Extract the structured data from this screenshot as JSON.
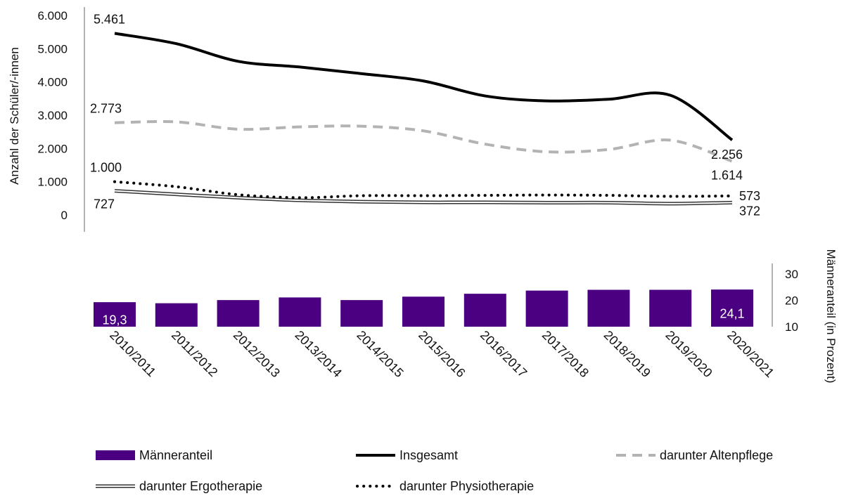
{
  "chart_data": [
    {
      "type": "line",
      "ylabel": "Anzahl der Schüler/-innen",
      "ylim": [
        0,
        6000
      ],
      "yticks": [
        "0",
        "1.000",
        "2.000",
        "3.000",
        "4.000",
        "5.000",
        "6.000"
      ],
      "ytick_values": [
        0,
        1000,
        2000,
        3000,
        4000,
        5000,
        6000
      ],
      "categories": [
        "2010/2011",
        "2011/2012",
        "2012/2013",
        "2013/2014",
        "2014/2015",
        "2015/2016",
        "2016/2017",
        "2017/2018",
        "2018/2019",
        "2019/2020",
        "2020/2021"
      ],
      "series": [
        {
          "name": "Insgesamt",
          "style": "solid",
          "color": "#000000",
          "values": [
            5461,
            5150,
            4620,
            4450,
            4250,
            4030,
            3580,
            3430,
            3480,
            3600,
            2256
          ],
          "labels": {
            "0": "5.461",
            "10": "2.256"
          }
        },
        {
          "name": "darunter Altenpflege",
          "style": "dashed",
          "color": "#b3b3b3",
          "values": [
            2773,
            2800,
            2580,
            2650,
            2670,
            2530,
            2130,
            1900,
            1970,
            2250,
            1614
          ],
          "labels": {
            "0": "2.773",
            "10": "1.614"
          }
        },
        {
          "name": "darunter Ergotherapie",
          "style": "double",
          "color": "#333333",
          "values": [
            727,
            620,
            520,
            440,
            400,
            380,
            380,
            370,
            370,
            340,
            372
          ],
          "labels": {
            "0": "727",
            "10": "372"
          }
        },
        {
          "name": "darunter Physiotherapie",
          "style": "dotted",
          "color": "#000000",
          "values": [
            1000,
            850,
            610,
            520,
            580,
            580,
            590,
            600,
            590,
            560,
            573
          ],
          "labels": {
            "0": "1.000",
            "10": "573"
          }
        }
      ]
    },
    {
      "type": "bar",
      "ylabel": "Männeranteil (in Prozent)",
      "ylim": [
        10,
        30
      ],
      "yticks": [
        "10",
        "20",
        "30"
      ],
      "ytick_values": [
        10,
        20,
        30
      ],
      "color": "#4b0082",
      "categories": [
        "2010/2011",
        "2011/2012",
        "2012/2013",
        "2013/2014",
        "2014/2015",
        "2015/2016",
        "2016/2017",
        "2017/2018",
        "2018/2019",
        "2019/2020",
        "2020/2021"
      ],
      "series": [
        {
          "name": "Männeranteil",
          "values": [
            19.3,
            18.9,
            20.1,
            21.1,
            20.1,
            21.4,
            22.5,
            23.7,
            24.0,
            24.0,
            24.1
          ],
          "labels": {
            "0": "19,3",
            "10": "24,1"
          }
        }
      ]
    }
  ],
  "legend": {
    "items": [
      {
        "label": "Männeranteil",
        "key": "bar"
      },
      {
        "label": "Insgesamt",
        "key": "solid"
      },
      {
        "label": "darunter Altenpflege",
        "key": "dashed"
      },
      {
        "label": "darunter Ergotherapie",
        "key": "double"
      },
      {
        "label": "darunter Physiotherapie",
        "key": "dotted"
      }
    ]
  }
}
